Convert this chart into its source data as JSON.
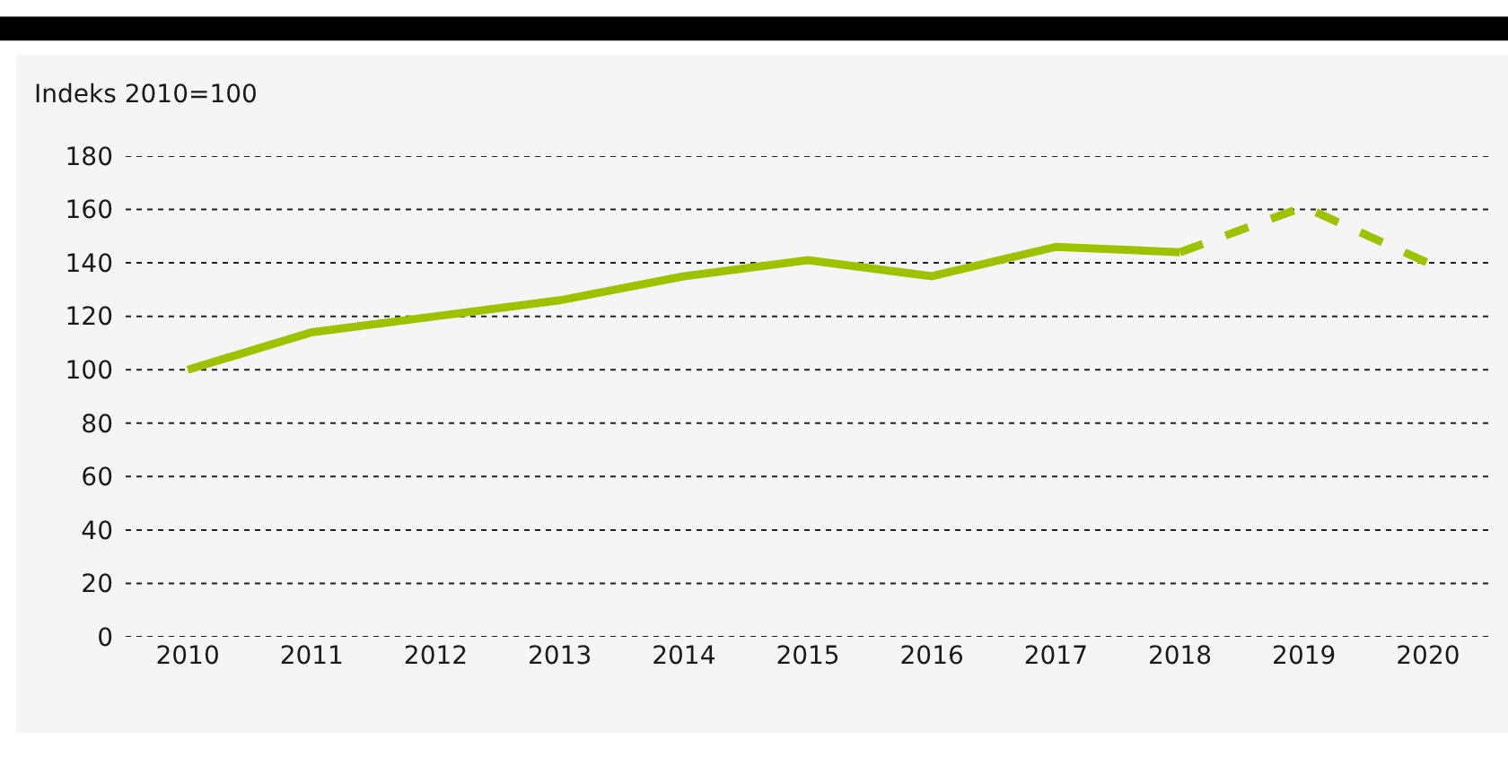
{
  "chart_data": {
    "type": "line",
    "ylabel": "Indeks 2010=100",
    "categories": [
      "2010",
      "2011",
      "2012",
      "2013",
      "2014",
      "2015",
      "2016",
      "2017",
      "2018",
      "2019",
      "2020"
    ],
    "series": [
      {
        "color": "#9dc300",
        "line_style": "solid",
        "values": [
          100,
          114,
          120,
          126,
          135,
          141,
          135,
          146,
          144,
          null,
          null
        ]
      },
      {
        "color": "#9dc300",
        "line_style": "dashed",
        "values": [
          null,
          null,
          null,
          null,
          null,
          null,
          null,
          null,
          144,
          161,
          140
        ]
      }
    ],
    "ylim": [
      0,
      180
    ],
    "yticks": [
      0,
      20,
      40,
      60,
      80,
      100,
      120,
      140,
      160,
      180
    ],
    "grid": "y",
    "marker": "none"
  }
}
